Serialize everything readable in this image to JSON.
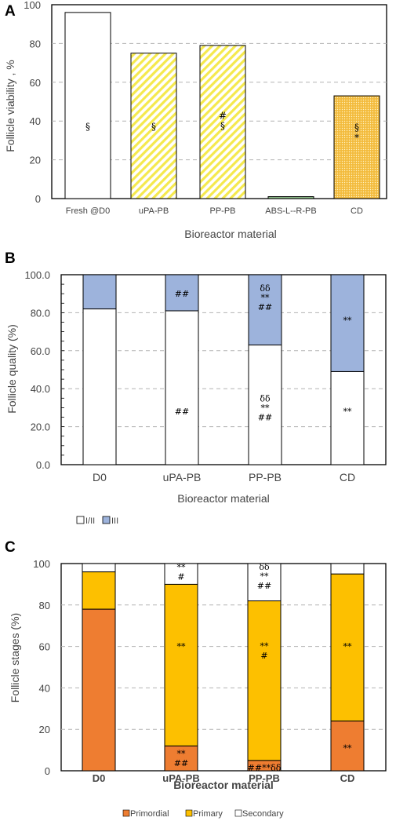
{
  "colors": {
    "white": "#ffffff",
    "stripe_yellow": "#f5e94d",
    "dotted_orange": "#f3bb3c",
    "abs_green": "#8fbf8a",
    "blue": "#9db3dc",
    "primordial": "#ee7d31",
    "primary": "#fdc000",
    "grid": "#b3b3b3",
    "axis": "#000000"
  },
  "chart_data": [
    {
      "panel": "A",
      "type": "bar",
      "ylabel": "Follicle viability , %",
      "xlabel": "Bioreactor material",
      "ylim": [
        0,
        100
      ],
      "yticks": [
        0,
        20,
        40,
        60,
        80,
        100
      ],
      "grid": true,
      "categories": [
        "Fresh @D0",
        "uPA-PB",
        "PP-PB",
        "ABS-L--R-PB",
        "CD"
      ],
      "values": [
        96,
        75,
        79,
        1,
        53
      ],
      "fills": [
        "solid-white",
        "stripes-yellow",
        "stripes-yellow",
        "solid-green",
        "dots-orange"
      ],
      "annotations": [
        {
          "category": "Fresh @D0",
          "lines": [
            "§"
          ],
          "y": 37
        },
        {
          "category": "uPA-PB",
          "lines": [
            "§"
          ],
          "y": 37
        },
        {
          "category": "PP-PB",
          "lines": [
            "#",
            "§"
          ],
          "y": 40
        },
        {
          "category": "CD",
          "lines": [
            "§",
            "*"
          ],
          "y": 34
        }
      ]
    },
    {
      "panel": "B",
      "type": "bar",
      "stacked": true,
      "ylabel": "Follicle quality (%)",
      "xlabel": "Bioreactor material",
      "ylim": [
        0,
        100
      ],
      "yticks": [
        "0.0",
        "20.0",
        "40.0",
        "60.0",
        "80.0",
        "100.0"
      ],
      "grid": true,
      "legend_position": "bottom-left",
      "categories": [
        "D0",
        "uPA-PB",
        "PP-PB",
        "CD"
      ],
      "series": [
        {
          "name": "I/II",
          "color_key": "white",
          "values": [
            82,
            81,
            63,
            49
          ]
        },
        {
          "name": "III",
          "color_key": "blue",
          "values": [
            18,
            19,
            37,
            51
          ]
        }
      ],
      "annotations": [
        {
          "category": "uPA-PB",
          "lines": [
            "##"
          ],
          "y": 90
        },
        {
          "category": "uPA-PB",
          "lines": [
            "##"
          ],
          "y": 28
        },
        {
          "category": "PP-PB",
          "lines": [
            "δδ",
            "**",
            "##"
          ],
          "y": 88
        },
        {
          "category": "PP-PB",
          "lines": [
            "δδ",
            "**",
            "##"
          ],
          "y": 30
        },
        {
          "category": "CD",
          "lines": [
            "**"
          ],
          "y": 76
        },
        {
          "category": "CD",
          "lines": [
            "**"
          ],
          "y": 28
        }
      ]
    },
    {
      "panel": "C",
      "type": "bar",
      "stacked": true,
      "ylabel": "Follicle stages (%)",
      "xlabel": "Bioreactor material",
      "ylim": [
        0,
        100
      ],
      "yticks": [
        0,
        20,
        40,
        60,
        80,
        100
      ],
      "grid": true,
      "legend_position": "bottom-center",
      "categories": [
        "D0",
        "uPA-PB",
        "PP-PB",
        "CD"
      ],
      "series": [
        {
          "name": "Primordial",
          "color_key": "primordial",
          "values": [
            78,
            12,
            5,
            24
          ]
        },
        {
          "name": "Primary",
          "color_key": "primary",
          "values": [
            18,
            78,
            77,
            71
          ]
        },
        {
          "name": "Secondary",
          "color_key": "white",
          "values": [
            4,
            10,
            18,
            5
          ]
        }
      ],
      "annotations": [
        {
          "category": "uPA-PB",
          "lines": [
            "**",
            "#"
          ],
          "y": 96
        },
        {
          "category": "uPA-PB",
          "lines": [
            "**"
          ],
          "y": 60
        },
        {
          "category": "uPA-PB",
          "lines": [
            "**",
            "##"
          ],
          "y": 6
        },
        {
          "category": "PP-PB",
          "lines": [
            "δδ",
            "**",
            "##"
          ],
          "y": 94
        },
        {
          "category": "PP-PB",
          "lines": [
            "**",
            "#"
          ],
          "y": 58
        },
        {
          "category": "PP-PB",
          "lines": [
            "##**δδ"
          ],
          "y": 1.5
        },
        {
          "category": "CD",
          "lines": [
            "**"
          ],
          "y": 60
        },
        {
          "category": "CD",
          "lines": [
            "**"
          ],
          "y": 11
        }
      ]
    }
  ]
}
